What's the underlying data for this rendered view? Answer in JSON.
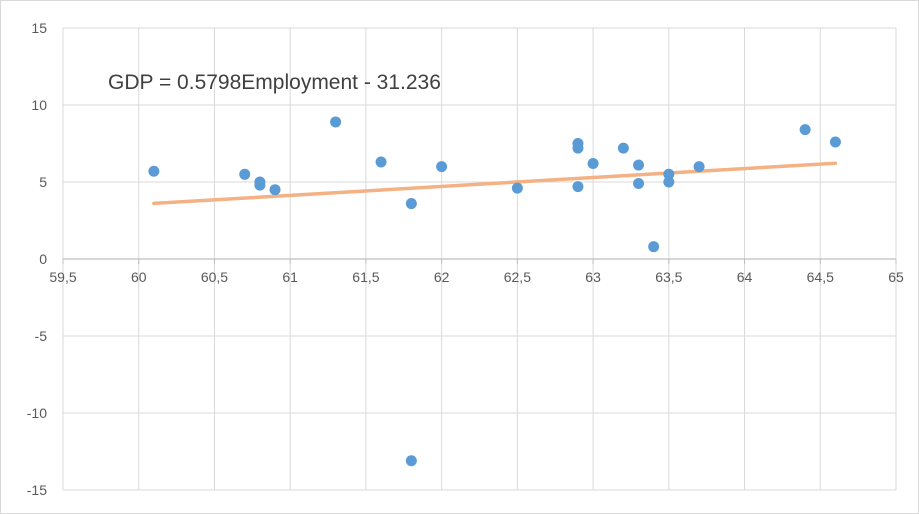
{
  "chart_data": {
    "type": "scatter",
    "title": "",
    "xlabel": "",
    "ylabel": "",
    "xlim": [
      59.5,
      65
    ],
    "ylim": [
      -15,
      15
    ],
    "x_ticks": [
      59.5,
      60,
      60.5,
      61,
      61.5,
      62,
      62.5,
      63,
      63.5,
      64,
      64.5,
      65
    ],
    "x_tick_labels": [
      "59,5",
      "60",
      "60,5",
      "61",
      "61,5",
      "62",
      "62,5",
      "63",
      "63,5",
      "64",
      "64,5",
      "65"
    ],
    "y_ticks": [
      15,
      10,
      5,
      0,
      -5,
      -10,
      -15
    ],
    "y_tick_labels": [
      "15",
      "10",
      "5",
      "0",
      "-5",
      "-10",
      "-15"
    ],
    "grid": "vertical and horizontal",
    "points": [
      {
        "x": 60.1,
        "y": 5.7
      },
      {
        "x": 60.7,
        "y": 5.5
      },
      {
        "x": 60.8,
        "y": 5.0
      },
      {
        "x": 60.8,
        "y": 4.8
      },
      {
        "x": 60.9,
        "y": 4.5
      },
      {
        "x": 61.3,
        "y": 8.9
      },
      {
        "x": 61.6,
        "y": 6.3
      },
      {
        "x": 61.8,
        "y": 3.6
      },
      {
        "x": 61.8,
        "y": -13.1
      },
      {
        "x": 62.0,
        "y": 6.0
      },
      {
        "x": 62.5,
        "y": 4.6
      },
      {
        "x": 62.9,
        "y": 7.5
      },
      {
        "x": 62.9,
        "y": 7.2
      },
      {
        "x": 62.9,
        "y": 4.7
      },
      {
        "x": 63.0,
        "y": 6.2
      },
      {
        "x": 63.2,
        "y": 7.2
      },
      {
        "x": 63.3,
        "y": 6.1
      },
      {
        "x": 63.3,
        "y": 4.9
      },
      {
        "x": 63.4,
        "y": 0.8
      },
      {
        "x": 63.5,
        "y": 5.5
      },
      {
        "x": 63.5,
        "y": 5.0
      },
      {
        "x": 63.7,
        "y": 6.0
      },
      {
        "x": 64.4,
        "y": 8.4
      },
      {
        "x": 64.6,
        "y": 7.6
      }
    ],
    "trendline": {
      "slope": 0.5798,
      "intercept": -31.236,
      "x_start": 60.1,
      "x_end": 64.6
    },
    "annotation": "GDP = 0.5798Employment - 31.236",
    "colors": {
      "points": "#5b9bd5",
      "trendline": "#f4b183",
      "grid": "#d9d9d9",
      "axis": "#bfbfbf",
      "text": "#595959"
    }
  }
}
